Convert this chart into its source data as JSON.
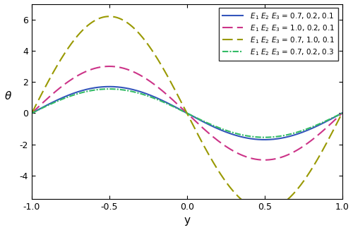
{
  "title": "",
  "xlabel": "y",
  "ylabel": "$\\theta$",
  "xlim": [
    -1.0,
    1.0
  ],
  "ylim": [
    -5.5,
    7.0
  ],
  "yticks": [
    -4,
    -2,
    0,
    2,
    4,
    6
  ],
  "xticks": [
    -1.0,
    -0.5,
    0.0,
    0.5,
    1.0
  ],
  "amplitudes": [
    1.7,
    3.0,
    6.2,
    1.55
  ],
  "colors": [
    "#3355bb",
    "#cc3388",
    "#999900",
    "#33bb66"
  ],
  "labels": [
    "$E_1$ $E_2$ $E_3$ = 0.7, 0.2, 0.1",
    "$E_1$ $E_2$ $E_3$ = 1.0, 0.2, 0.1",
    "$E_1$ $E_2$ $E_3$ = 0.7, 1.0, 0.1",
    "$E_1$ $E_2$ $E_3$ = 0.7, 0.2, 0.3"
  ],
  "background_color": "#ffffff",
  "legend_fontsize": 7.5,
  "axis_fontsize": 11,
  "tick_fontsize": 9,
  "figsize": [
    5.0,
    3.26
  ],
  "dpi": 100
}
